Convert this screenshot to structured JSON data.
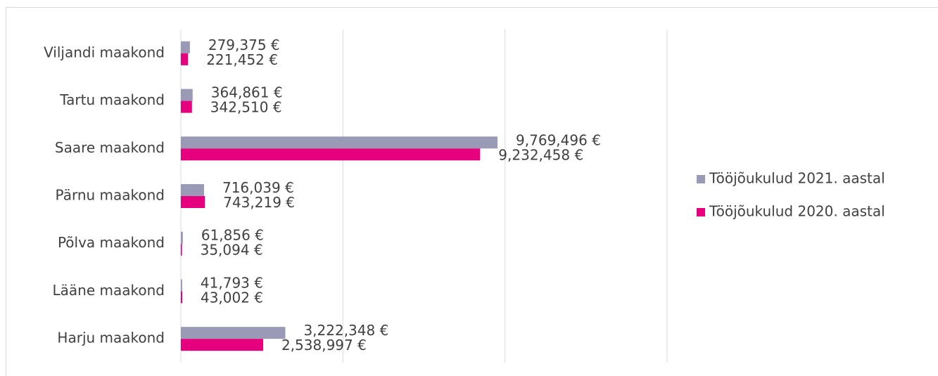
{
  "chart_data": {
    "type": "bar",
    "orientation": "horizontal",
    "categories": [
      "Viljandi maakond",
      "Tartu maakond",
      "Saare maakond",
      "Pärnu maakond",
      "Põlva maakond",
      "Lääne maakond",
      "Harju maakond"
    ],
    "series": [
      {
        "name": "Tööjõukulud 2021. aastal",
        "color": "#9a9ab6",
        "values": [
          279375,
          364861,
          9769496,
          716039,
          61856,
          41793,
          3222348
        ],
        "value_labels": [
          "279,375 €",
          "364,861 €",
          "9,769,496 €",
          "716,039 €",
          "61,856 €",
          "41,793 €",
          "3,222,348 €"
        ]
      },
      {
        "name": "Tööjõukulud 2020. aastal",
        "color": "#e6007e",
        "values": [
          221452,
          342510,
          9232458,
          743219,
          35094,
          43002,
          2538997
        ],
        "value_labels": [
          "221,452 €",
          "342,510 €",
          "9,232,458 €",
          "743,219 €",
          "35,094 €",
          "43,002 €",
          "2,538,997 €"
        ]
      }
    ],
    "xlim": [
      0,
      15000000
    ],
    "xticks": [
      0,
      5000000,
      10000000,
      15000000
    ],
    "grid": true,
    "legend": "right"
  }
}
